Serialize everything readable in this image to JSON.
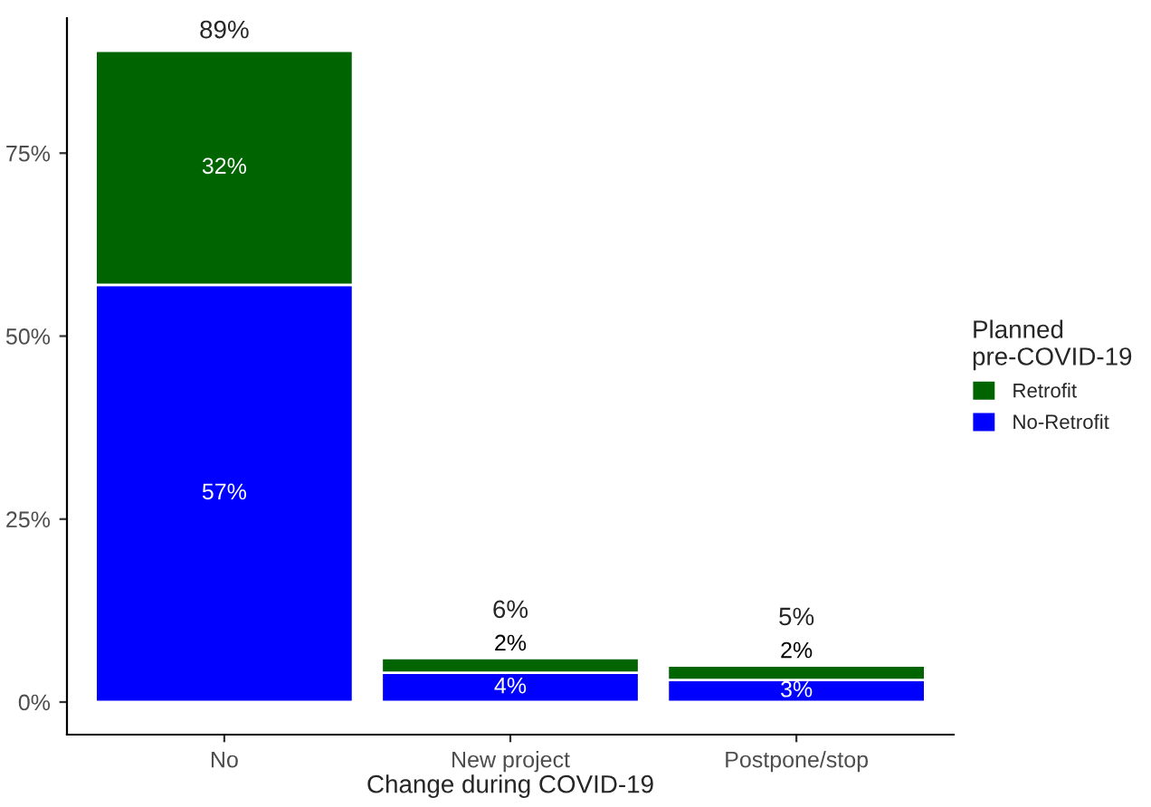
{
  "chart_data": {
    "type": "bar",
    "stacked": true,
    "xlabel": "Change during COVID-19",
    "legend_title": "Planned\npre-COVID-19",
    "legend": "right",
    "grid": false,
    "categories": [
      "No",
      "New project",
      "Postpone/stop"
    ],
    "series": [
      {
        "name": "No-Retrofit",
        "color": "#0000ff",
        "values": [
          57,
          4,
          3
        ],
        "value_labels": [
          "57%",
          "4%",
          "3%"
        ]
      },
      {
        "name": "Retrofit",
        "color": "#006400",
        "values": [
          32,
          2,
          2
        ],
        "value_labels": [
          "32%",
          "2%",
          "2%"
        ]
      }
    ],
    "totals": [
      "89%",
      "6%",
      "5%"
    ],
    "ylim": [
      -4.45,
      93.45
    ],
    "yticks": [
      {
        "value": 0,
        "label": "0%"
      },
      {
        "value": 25,
        "label": "25%"
      },
      {
        "value": 50,
        "label": "50%"
      },
      {
        "value": 75,
        "label": "75%"
      }
    ]
  }
}
